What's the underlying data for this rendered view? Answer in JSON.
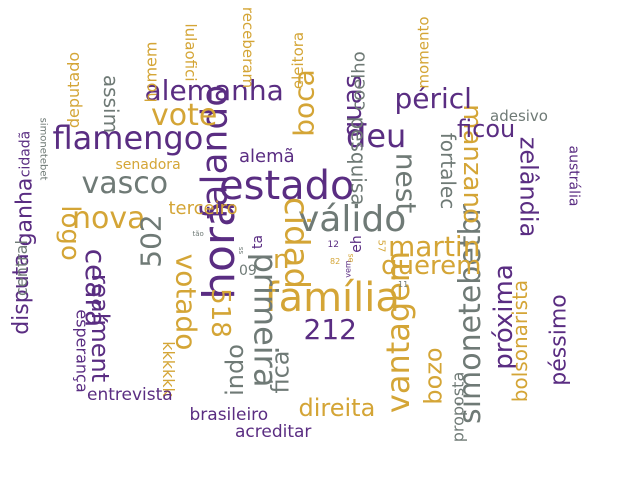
{
  "palette": {
    "purple": "#5a2d82",
    "gold": "#d4a536",
    "gray": "#6f7a76",
    "background": "#ffffff"
  },
  "words": [
    {
      "text": "família",
      "color": "gold"
    },
    {
      "text": "hora",
      "color": "purple"
    },
    {
      "text": "estado",
      "color": "purple"
    },
    {
      "text": "válido",
      "color": "gray"
    },
    {
      "text": "cidad",
      "color": "gold"
    },
    {
      "text": "falando",
      "color": "purple"
    },
    {
      "text": "primeira",
      "color": "gray"
    },
    {
      "text": "simonetebetbr",
      "color": "gray"
    },
    {
      "text": "vantagem",
      "color": "gold"
    },
    {
      "text": "flamengo",
      "color": "purple"
    },
    {
      "text": "nest",
      "color": "gray"
    },
    {
      "text": "deu",
      "color": "purple"
    },
    {
      "text": "vote",
      "color": "gold"
    },
    {
      "text": "alemanha",
      "color": "purple"
    },
    {
      "text": "vasco",
      "color": "gray"
    },
    {
      "text": "nova",
      "color": "gold"
    },
    {
      "text": "votado",
      "color": "gold"
    },
    {
      "text": "502",
      "color": "gray"
    },
    {
      "text": "518",
      "color": "gold"
    },
    {
      "text": "212",
      "color": "purple"
    },
    {
      "text": "martin",
      "color": "gold"
    },
    {
      "text": "querem",
      "color": "gold"
    },
    {
      "text": "ceará",
      "color": "purple"
    },
    {
      "text": "realment",
      "color": "purple"
    },
    {
      "text": "próxima",
      "color": "purple"
    },
    {
      "text": "manzano",
      "color": "gold"
    },
    {
      "text": "zelândia",
      "color": "purple"
    },
    {
      "text": "boca",
      "color": "gold"
    },
    {
      "text": "quas",
      "color": "purple"
    },
    {
      "text": "péricl",
      "color": "purple"
    },
    {
      "text": "logo",
      "color": "gold"
    },
    {
      "text": "ficou",
      "color": "purple"
    },
    {
      "text": "indo",
      "color": "gray"
    },
    {
      "text": "fica",
      "color": "gray"
    },
    {
      "text": "direita",
      "color": "gold"
    },
    {
      "text": "bozo",
      "color": "gold"
    },
    {
      "text": "n",
      "color": "gold"
    },
    {
      "text": "pesquisa",
      "color": "gray"
    },
    {
      "text": "fortalec",
      "color": "gray"
    },
    {
      "text": "bolsonarista",
      "color": "gold"
    },
    {
      "text": "péssimo",
      "color": "purple"
    },
    {
      "text": "disputa",
      "color": "purple"
    },
    {
      "text": "ganha",
      "color": "purple"
    },
    {
      "text": "terceiro",
      "color": "gold"
    },
    {
      "text": "alemã",
      "color": "purple"
    },
    {
      "text": "assim",
      "color": "gray"
    },
    {
      "text": "coelho",
      "color": "gray"
    },
    {
      "text": "kkkkkk",
      "color": "gold"
    },
    {
      "text": "entrevista",
      "color": "purple"
    },
    {
      "text": "brasileiro",
      "color": "purple"
    },
    {
      "text": "acreditar",
      "color": "purple"
    },
    {
      "text": "proposta",
      "color": "gray"
    },
    {
      "text": "esperança",
      "color": "purple"
    },
    {
      "text": "central",
      "color": "gray"
    },
    {
      "text": "deputado",
      "color": "gold"
    },
    {
      "text": "homem",
      "color": "gold"
    },
    {
      "text": "lulaofici",
      "color": "gold"
    },
    {
      "text": "receberam",
      "color": "gold"
    },
    {
      "text": "eleitora",
      "color": "gold"
    },
    {
      "text": "momento",
      "color": "gold"
    },
    {
      "text": "adesivo",
      "color": "gray"
    },
    {
      "text": "austrália",
      "color": "purple"
    },
    {
      "text": "senadora",
      "color": "gold"
    },
    {
      "text": "cidadã",
      "color": "purple"
    },
    {
      "text": "simonetebet",
      "color": "gray"
    },
    {
      "text": "ta",
      "color": "purple"
    },
    {
      "text": "09",
      "color": "gray"
    },
    {
      "text": "eh",
      "color": "purple"
    },
    {
      "text": "57",
      "color": "gold"
    },
    {
      "text": "12",
      "color": "purple"
    },
    {
      "text": "11",
      "color": "gray"
    },
    {
      "text": "vem",
      "color": "purple"
    },
    {
      "text": "tão",
      "color": "gray"
    },
    {
      "text": "ss",
      "color": "gray"
    },
    {
      "text": "82",
      "color": "gold"
    },
    {
      "text": "se",
      "color": "gold"
    }
  ]
}
